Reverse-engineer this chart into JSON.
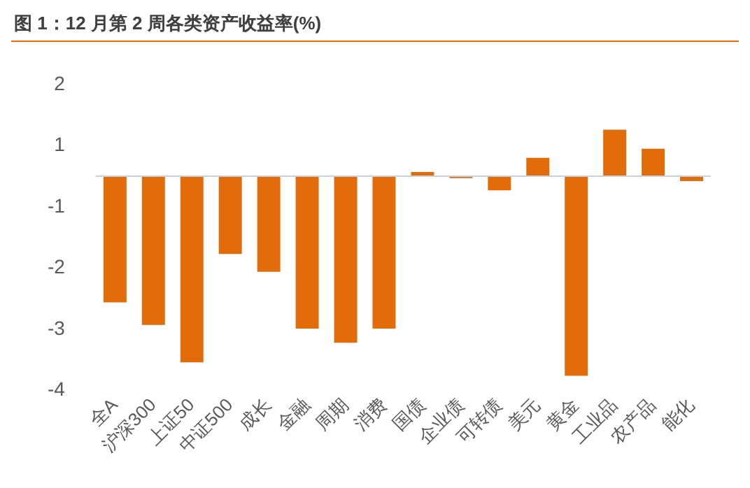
{
  "chart_data": {
    "type": "bar",
    "title": "图 1：12 月第 2 周各类资产收益率(%)",
    "categories": [
      "全A",
      "沪深300",
      "上证50",
      "中证500",
      "成长",
      "金融",
      "周期",
      "消费",
      "国债",
      "企业债",
      "可转债",
      "美元",
      "黄金",
      "工业品",
      "农产品",
      "能化"
    ],
    "values": [
      -2.06,
      -2.43,
      -3.04,
      -1.27,
      -1.56,
      -2.49,
      -2.72,
      -2.49,
      0.07,
      -0.03,
      -0.23,
      0.3,
      -3.26,
      0.76,
      0.45,
      -0.08
    ],
    "color": "#e36c0a",
    "ylim": [
      -3.5,
      1.5
    ],
    "yticks": [
      {
        "value": 1.5,
        "label": "2"
      },
      {
        "value": 0.5,
        "label": "1"
      },
      {
        "value": -0.5,
        "label": "-1"
      },
      {
        "value": -1.5,
        "label": "-2"
      },
      {
        "value": -2.5,
        "label": "-3"
      },
      {
        "value": -3.5,
        "label": "-4"
      }
    ],
    "grid": false,
    "legend": false
  }
}
